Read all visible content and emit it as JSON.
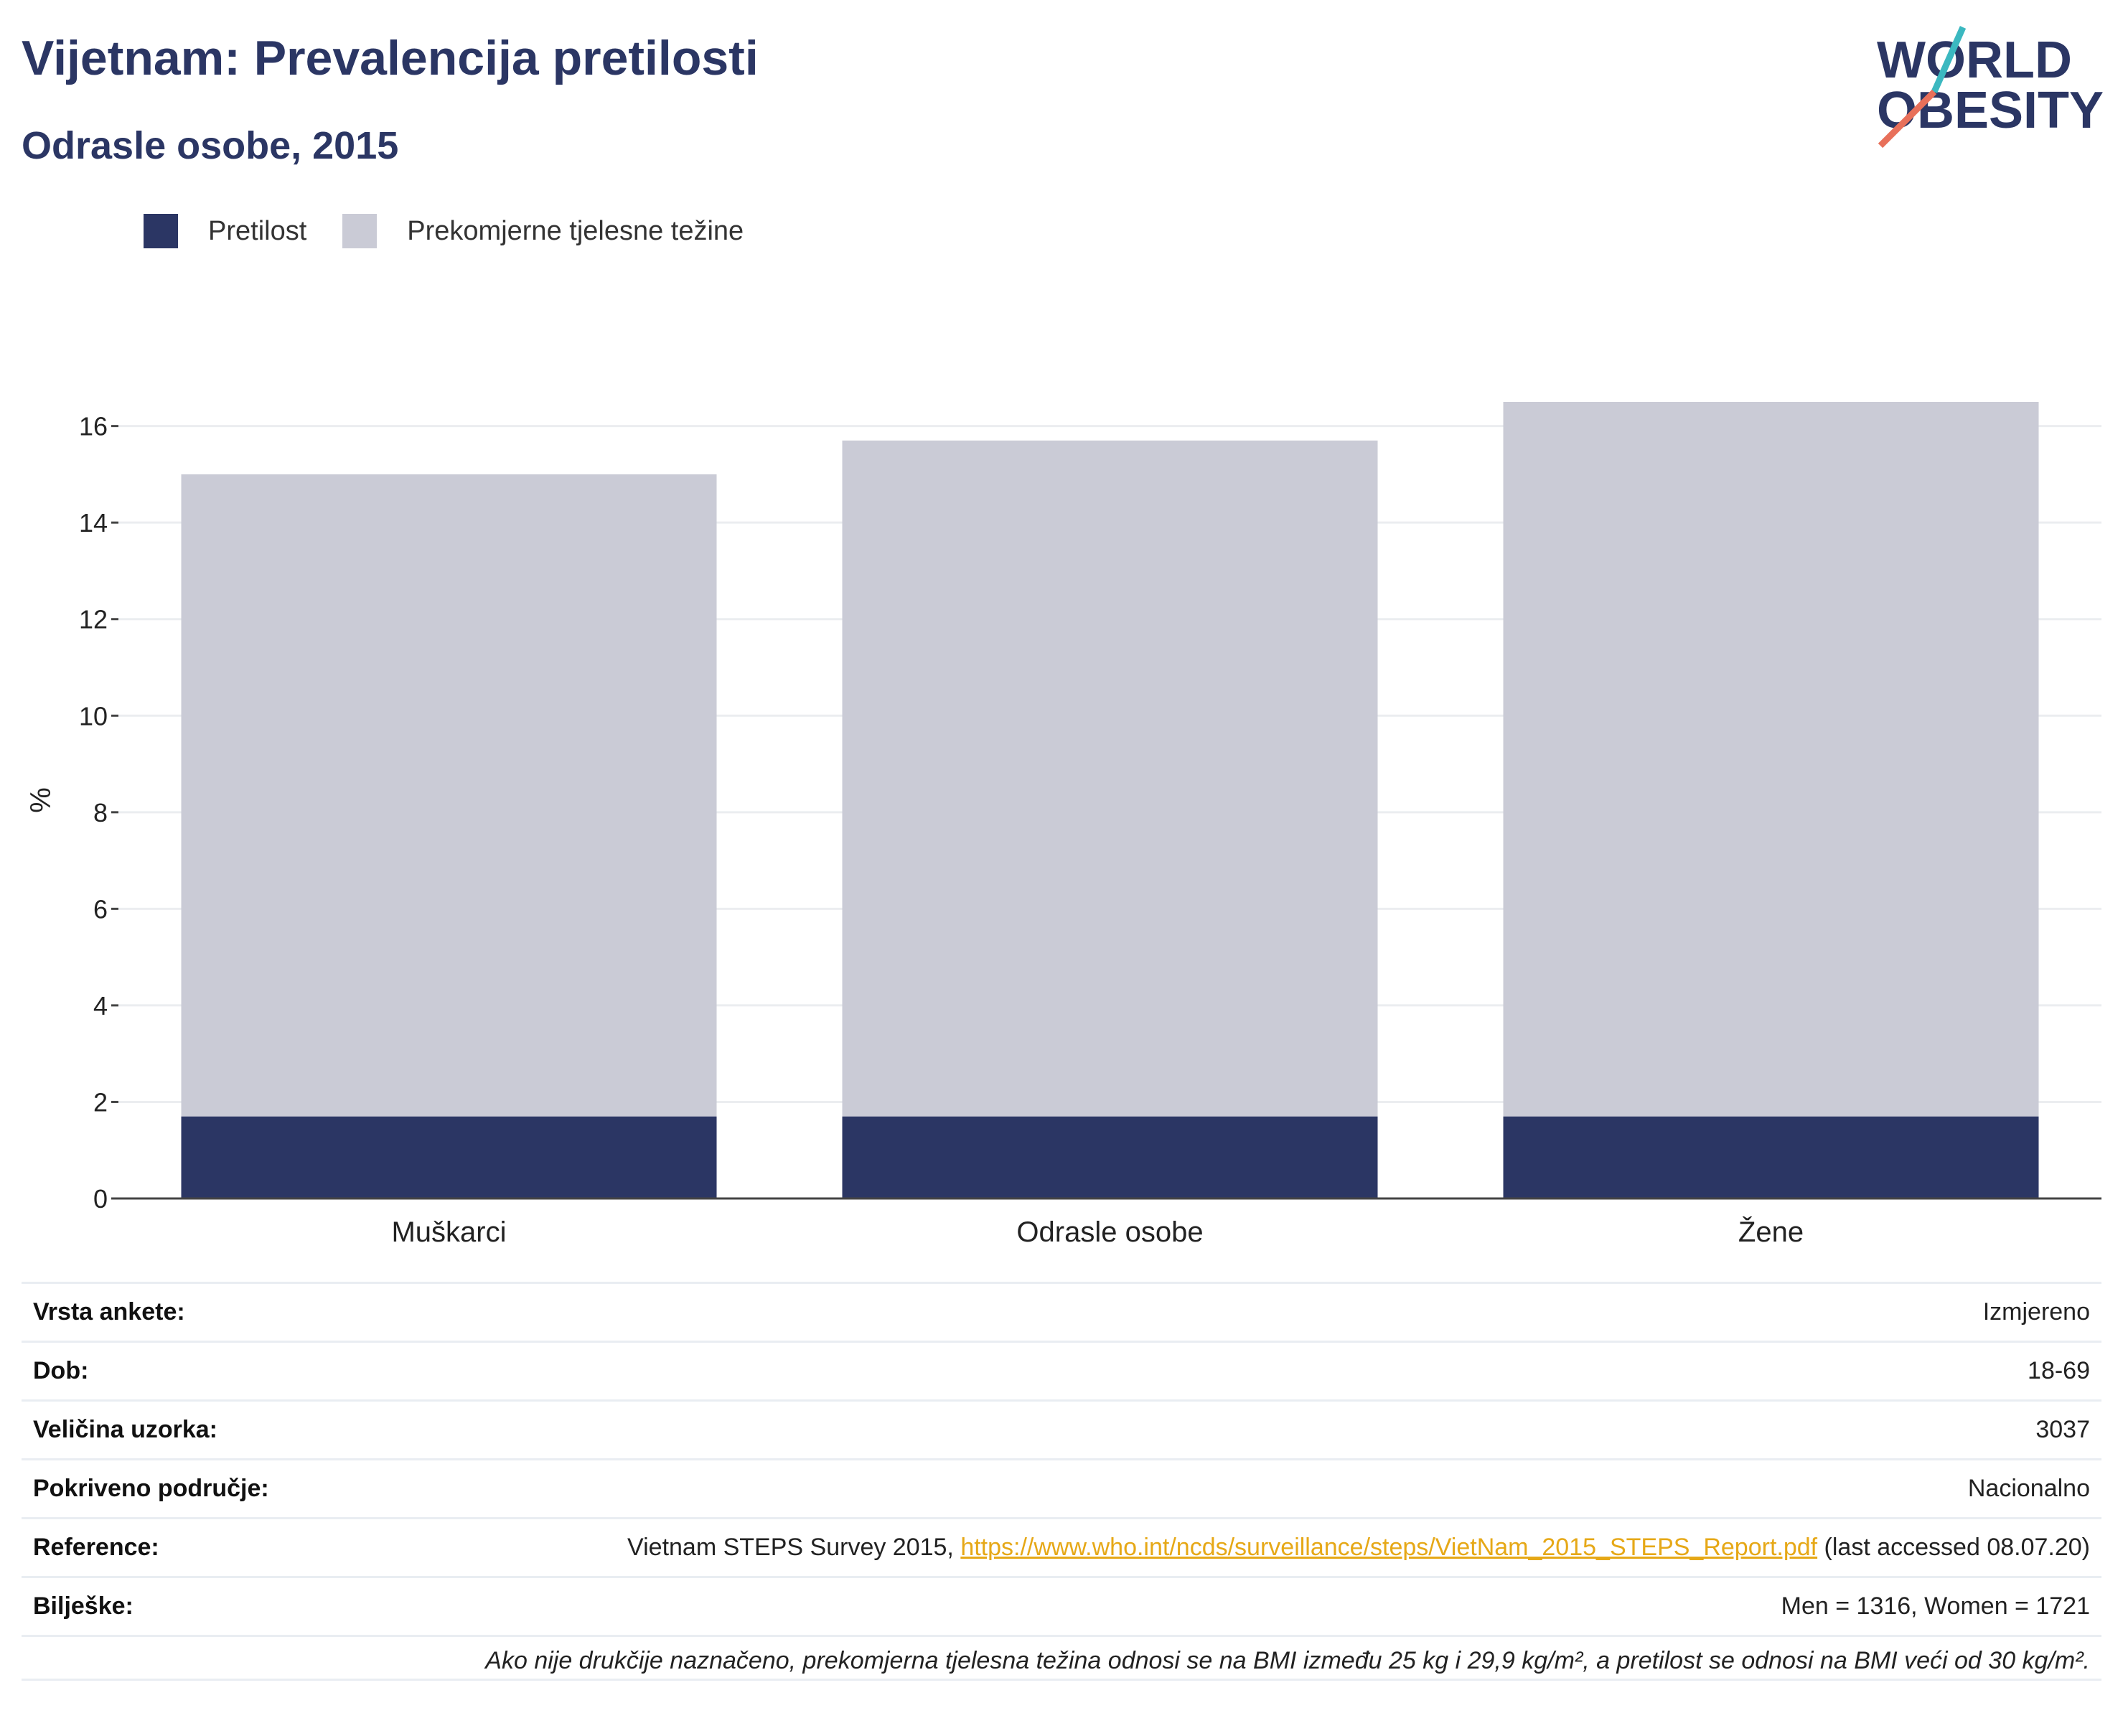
{
  "title": "Vijetnam: Prevalencija pretilosti",
  "subtitle": "Odrasle osobe, 2015",
  "logo": {
    "line1": "WORLD",
    "line2": "OBESITY"
  },
  "colors": {
    "obesity": "#2b3664",
    "overweight": "#cacbd6",
    "title": "#2b3664",
    "link": "#e6a817"
  },
  "chart_data": {
    "type": "bar",
    "stacked": true,
    "categories": [
      "Muškarci",
      "Odrasle osobe",
      "Žene"
    ],
    "series": [
      {
        "name": "Pretilost",
        "values": [
          1.7,
          1.7,
          1.7
        ]
      },
      {
        "name": "Prekomjerne tjelesne težine",
        "values": [
          13.3,
          14.0,
          14.8
        ]
      }
    ],
    "ylabel": "%",
    "ylim": [
      0,
      16.5
    ],
    "yticks": [
      0,
      2,
      4,
      6,
      8,
      10,
      12,
      14,
      16
    ],
    "grid": true,
    "legend": "top-left"
  },
  "meta": {
    "rows": [
      {
        "label": "Vrsta ankete:",
        "value": "Izmjereno"
      },
      {
        "label": "Dob:",
        "value": "18-69"
      },
      {
        "label": "Veličina uzorka:",
        "value": "3037"
      },
      {
        "label": "Pokriveno područje:",
        "value": "Nacionalno"
      }
    ],
    "reference": {
      "label": "Reference:",
      "prefix": "Vietnam STEPS Survey 2015, ",
      "link": "https://www.who.int/ncds/surveillance/steps/VietNam_2015_STEPS_Report.pdf",
      "suffix": " (last accessed 08.07.20)"
    },
    "notes": {
      "label": "Bilješke:",
      "value": "Men = 1316, Women = 1721"
    },
    "footnote": "Ako nije drukčije naznačeno, prekomjerna tjelesna težina odnosi se na BMI između 25 kg i 29,9 kg/m², a pretilost se odnosi na BMI veći od 30 kg/m²."
  }
}
